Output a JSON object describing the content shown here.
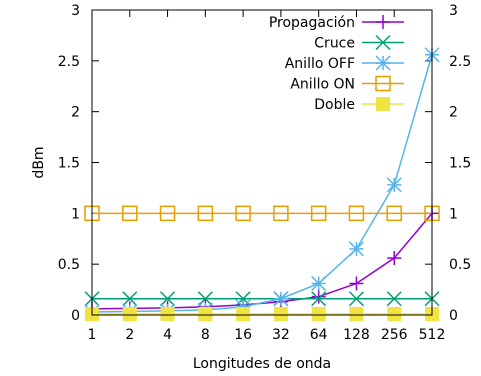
{
  "chart_data": {
    "type": "line",
    "xlabel": "Longitudes de onda",
    "ylabel": "dBm",
    "categories": [
      "1",
      "2",
      "4",
      "8",
      "16",
      "32",
      "64",
      "128",
      "256",
      "512"
    ],
    "ylim": [
      0,
      3
    ],
    "yticks": [
      "0",
      "0.5",
      "1",
      "1.5",
      "2",
      "2.5",
      "3"
    ],
    "y2ticks": [
      "0",
      "0.5",
      "1",
      "1.5",
      "2",
      "2.5",
      "3"
    ],
    "legend_position": "top-right",
    "grid": false,
    "series": [
      {
        "name": "Propagación",
        "color": "#9400d3",
        "marker": "plus",
        "values": [
          0.06,
          0.065,
          0.07,
          0.08,
          0.1,
          0.13,
          0.18,
          0.31,
          0.56,
          1.0
        ]
      },
      {
        "name": "Cruce",
        "color": "#009e73",
        "marker": "x",
        "values": [
          0.16,
          0.16,
          0.16,
          0.16,
          0.16,
          0.16,
          0.16,
          0.16,
          0.16,
          0.16
        ]
      },
      {
        "name": "Anillo OFF",
        "color": "#56b4e9",
        "marker": "star",
        "values": [
          0.03,
          0.035,
          0.04,
          0.05,
          0.08,
          0.16,
          0.31,
          0.65,
          1.28,
          2.56
        ]
      },
      {
        "name": "Anillo ON",
        "color": "#e69f00",
        "marker": "square-open",
        "values": [
          1,
          1,
          1,
          1,
          1,
          1,
          1,
          1,
          1,
          1
        ]
      },
      {
        "name": "Doble",
        "color": "#f0e442",
        "marker": "square-filled",
        "values": [
          0.01,
          0.01,
          0.01,
          0.01,
          0.01,
          0.01,
          0.01,
          0.01,
          0.01,
          0.01
        ]
      }
    ]
  }
}
